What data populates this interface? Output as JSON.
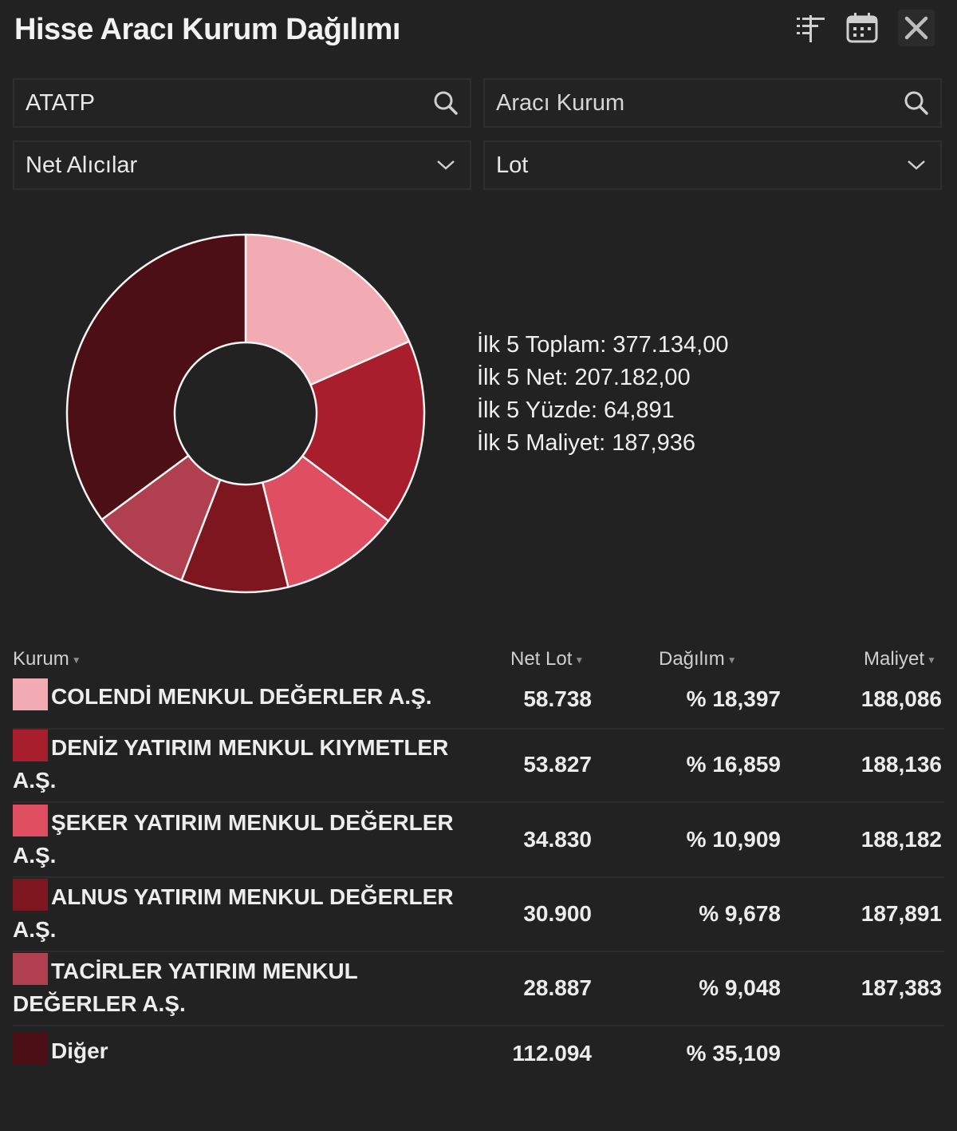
{
  "window": {
    "title": "Hisse Aracı Kurum Dağılımı"
  },
  "toolbar": {
    "icons": [
      "filter-list-icon",
      "calendar-icon",
      "close-icon"
    ]
  },
  "filters": {
    "symbol_value": "ATATP",
    "broker_placeholder": "Aracı Kurum",
    "side_select": "Net Alıcılar",
    "unit_select": "Lot"
  },
  "summary": {
    "total": "İlk 5 Toplam: 377.134,00",
    "net": "İlk 5 Net: 207.182,00",
    "percent": "İlk 5 Yüzde: 64,891",
    "cost": "İlk 5 Maliyet: 187,936"
  },
  "table": {
    "headers": {
      "kurum": "Kurum",
      "net_lot": "Net Lot",
      "dagilim": "Dağılım",
      "maliyet": "Maliyet"
    },
    "rows": [
      {
        "name": "COLENDİ MENKUL DEĞERLER A.Ş.",
        "net_lot": "58.738",
        "dagilim": "% 18,397",
        "maliyet": "188,086",
        "color": "#f2aab3"
      },
      {
        "name": "DENİZ YATIRIM MENKUL KIYMETLER A.Ş.",
        "net_lot": "53.827",
        "dagilim": "% 16,859",
        "maliyet": "188,136",
        "color": "#a81e2c"
      },
      {
        "name": "ŞEKER YATIRIM MENKUL DEĞERLER A.Ş.",
        "net_lot": "34.830",
        "dagilim": "% 10,909",
        "maliyet": "188,182",
        "color": "#e04e62"
      },
      {
        "name": "ALNUS YATIRIM MENKUL DEĞERLER A.Ş.",
        "net_lot": "30.900",
        "dagilim": "% 9,678",
        "maliyet": "187,891",
        "color": "#7e1620"
      },
      {
        "name": "TACİRLER YATIRIM MENKUL DEĞERLER A.Ş.",
        "net_lot": "28.887",
        "dagilim": "% 9,048",
        "maliyet": "187,383",
        "color": "#b0404f"
      },
      {
        "name": "Diğer",
        "net_lot": "112.094",
        "dagilim": "% 35,109",
        "maliyet": "",
        "color": "#4c0f15"
      }
    ]
  },
  "chart_data": {
    "type": "pie",
    "categories": [
      "COLENDİ MENKUL DEĞERLER A.Ş.",
      "DENİZ YATIRIM MENKUL KIYMETLER A.Ş.",
      "ŞEKER YATIRIM MENKUL DEĞERLER A.Ş.",
      "ALNUS YATIRIM MENKUL DEĞERLER A.Ş.",
      "TACİRLER YATIRIM MENKUL DEĞERLER A.Ş.",
      "Diğer"
    ],
    "values": [
      58738,
      53827,
      34830,
      30900,
      28887,
      112094
    ],
    "colors": [
      "#f2aab3",
      "#a81e2c",
      "#e04e62",
      "#7e1620",
      "#b0404f",
      "#4c0f15"
    ],
    "donut": true
  }
}
